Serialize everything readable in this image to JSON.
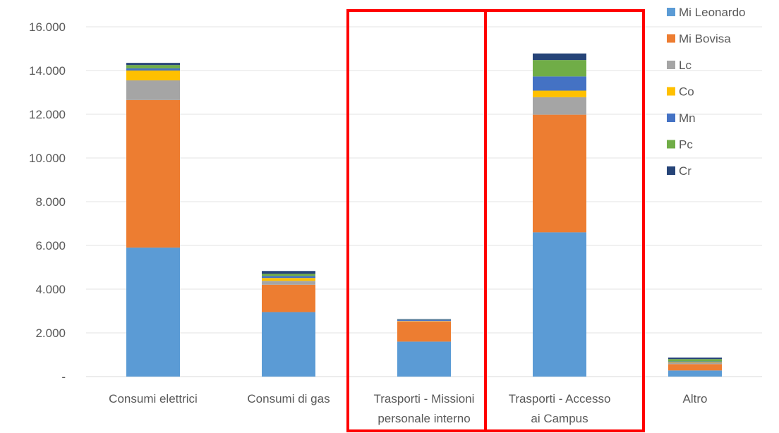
{
  "chart_data": {
    "type": "bar",
    "stacked": true,
    "categories": [
      [
        "Consumi elettrici"
      ],
      [
        "Consumi di gas"
      ],
      [
        "Trasporti - Missioni",
        "personale interno"
      ],
      [
        "Trasporti - Accesso",
        "ai Campus"
      ],
      [
        "Altro"
      ]
    ],
    "ytick_labels": [
      "-",
      "2.000",
      "4.000",
      "6.000",
      "8.000",
      "10.000",
      "12.000",
      "14.000",
      "16.000"
    ],
    "ylim": [
      0,
      16000
    ],
    "grid": true,
    "legend_position": "top-right",
    "series": [
      {
        "name": "Mi Leonardo",
        "color": "#5b9bd5",
        "values": [
          5900,
          2950,
          1600,
          6600,
          280
        ]
      },
      {
        "name": "Mi Bovisa",
        "color": "#ed7d31",
        "values": [
          6750,
          1250,
          920,
          5380,
          290
        ]
      },
      {
        "name": "Lc",
        "color": "#a5a5a5",
        "values": [
          900,
          180,
          20,
          800,
          50
        ]
      },
      {
        "name": "Co",
        "color": "#ffc000",
        "values": [
          450,
          130,
          10,
          300,
          30
        ]
      },
      {
        "name": "Mn",
        "color": "#4472c4",
        "values": [
          100,
          90,
          50,
          650,
          40
        ]
      },
      {
        "name": "Pc",
        "color": "#70ad47",
        "values": [
          150,
          100,
          10,
          750,
          110
        ]
      },
      {
        "name": "Cr",
        "color": "#264478",
        "values": [
          100,
          130,
          20,
          300,
          70
        ]
      }
    ],
    "highlight_boxes": {
      "color": "#ff0000",
      "categories": [
        2,
        3
      ]
    }
  }
}
